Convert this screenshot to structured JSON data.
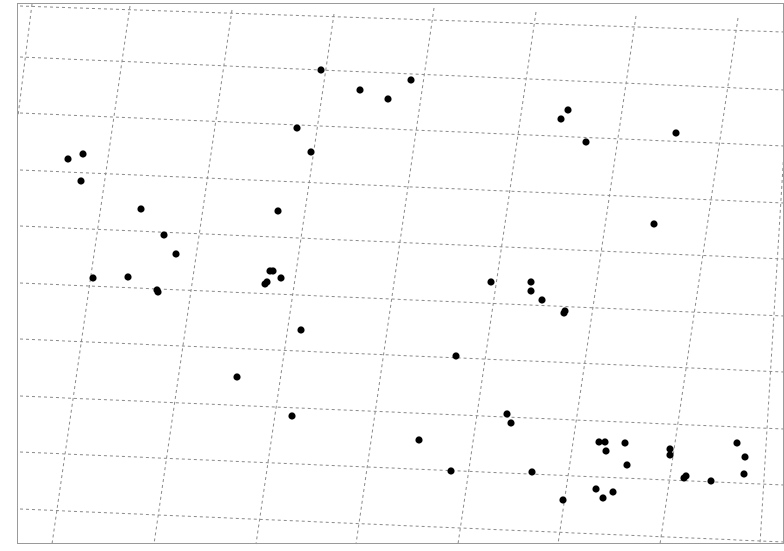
{
  "map": {
    "points": [
      {
        "id": "p1"
      },
      {
        "id": "p2"
      },
      {
        "id": "p3"
      },
      {
        "id": "p4"
      },
      {
        "id": "p5"
      },
      {
        "id": "p6"
      },
      {
        "id": "p7"
      },
      {
        "id": "p8"
      },
      {
        "id": "p9"
      },
      {
        "id": "p10"
      },
      {
        "id": "p11"
      },
      {
        "id": "p12"
      },
      {
        "id": "p13"
      },
      {
        "id": "p14"
      },
      {
        "id": "p15"
      },
      {
        "id": "p16"
      },
      {
        "id": "p17"
      },
      {
        "id": "p18"
      },
      {
        "id": "p19"
      },
      {
        "id": "p20"
      },
      {
        "id": "p21"
      },
      {
        "id": "p22"
      },
      {
        "id": "p23"
      },
      {
        "id": "p24"
      },
      {
        "id": "p25"
      },
      {
        "id": "p26"
      },
      {
        "id": "p27"
      },
      {
        "id": "p28"
      },
      {
        "id": "p29"
      },
      {
        "id": "p30"
      },
      {
        "id": "p31"
      },
      {
        "id": "p32"
      },
      {
        "id": "p33"
      },
      {
        "id": "p34"
      },
      {
        "id": "p35"
      },
      {
        "id": "p36"
      },
      {
        "id": "p37"
      },
      {
        "id": "p38"
      },
      {
        "id": "p39"
      },
      {
        "id": "p40"
      },
      {
        "id": "p41"
      },
      {
        "id": "p42"
      },
      {
        "id": "p43"
      },
      {
        "id": "p44"
      },
      {
        "id": "p45"
      },
      {
        "id": "p46"
      },
      {
        "id": "p47"
      },
      {
        "id": "p48"
      },
      {
        "id": "p49"
      },
      {
        "id": "p50"
      },
      {
        "id": "p51"
      },
      {
        "id": "p52"
      },
      {
        "id": "p53"
      },
      {
        "id": "p54"
      },
      {
        "id": "p55"
      },
      {
        "id": "p56"
      },
      {
        "id": "p57"
      },
      {
        "id": "p58"
      },
      {
        "id": "p59"
      }
    ],
    "colors": {
      "background": "#ffffff",
      "graticule": "#8a8a8a",
      "point": "#000000"
    }
  }
}
